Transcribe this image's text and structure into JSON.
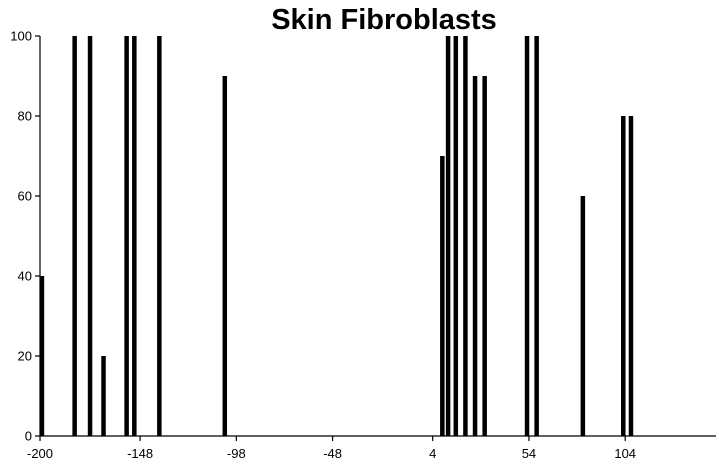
{
  "chart_data": {
    "type": "bar",
    "title": "Skin Fibroblasts",
    "xlabel": "",
    "ylabel": "",
    "xlim": [
      -200,
      124
    ],
    "ylim": [
      0,
      100
    ],
    "x_ticks": [
      -200,
      -148,
      -98,
      -48,
      4,
      54,
      104
    ],
    "y_ticks": [
      0,
      20,
      40,
      60,
      80,
      100
    ],
    "grid": false,
    "legend": "none",
    "bar_color": "#000000",
    "points": [
      {
        "x": -199,
        "y": 40
      },
      {
        "x": -182,
        "y": 100
      },
      {
        "x": -174,
        "y": 100
      },
      {
        "x": -167,
        "y": 20
      },
      {
        "x": -155,
        "y": 100
      },
      {
        "x": -151,
        "y": 100
      },
      {
        "x": -138,
        "y": 100
      },
      {
        "x": -104,
        "y": 90
      },
      {
        "x": 9,
        "y": 70
      },
      {
        "x": 12,
        "y": 100
      },
      {
        "x": 16,
        "y": 100
      },
      {
        "x": 21,
        "y": 100
      },
      {
        "x": 26,
        "y": 90
      },
      {
        "x": 31,
        "y": 90
      },
      {
        "x": 53,
        "y": 100
      },
      {
        "x": 58,
        "y": 100
      },
      {
        "x": 82,
        "y": 60
      },
      {
        "x": 103,
        "y": 80
      },
      {
        "x": 107,
        "y": 80
      }
    ]
  }
}
